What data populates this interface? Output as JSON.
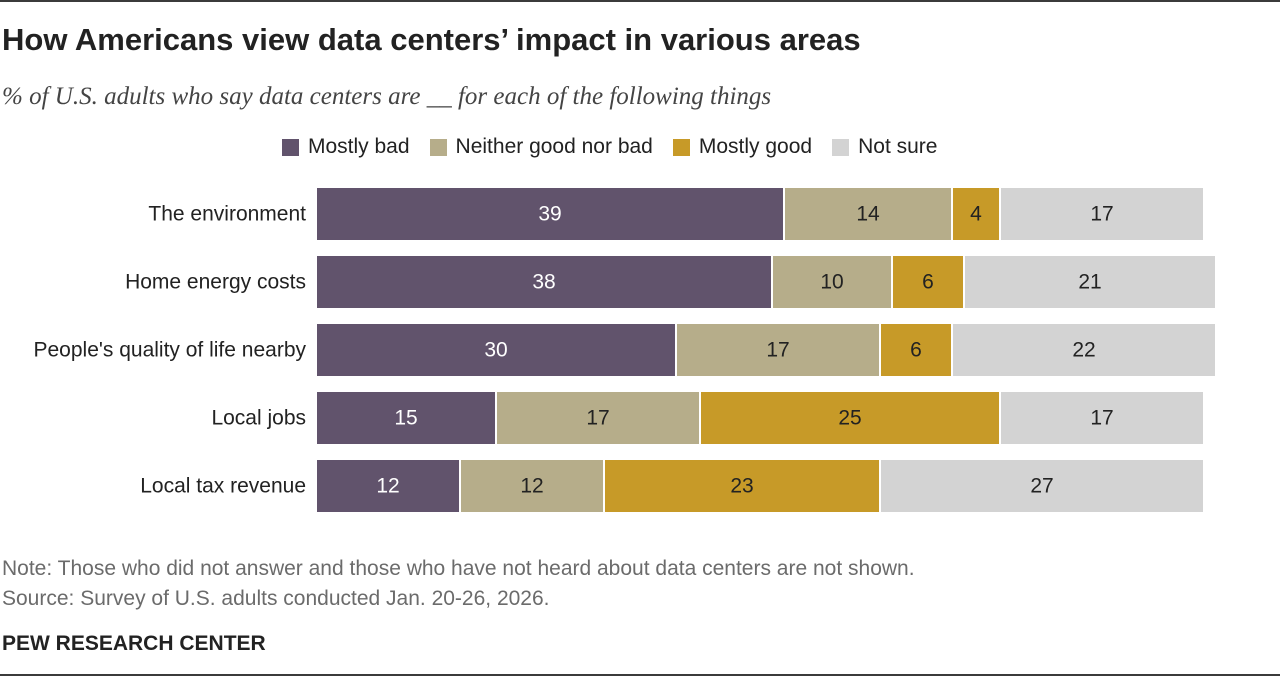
{
  "title": "How Americans view data centers’ impact in various areas",
  "subtitle": "% of U.S. adults who say data centers are __ for each of the following things",
  "legend": [
    {
      "label": "Mostly bad",
      "color": "#61536c"
    },
    {
      "label": "Neither good nor bad",
      "color": "#b6ad8a"
    },
    {
      "label": "Mostly good",
      "color": "#c79a28"
    },
    {
      "label": "Not sure",
      "color": "#d3d3d3"
    }
  ],
  "chart_data": {
    "type": "bar",
    "orientation": "horizontal",
    "stacked": true,
    "categories": [
      "The environment",
      "Home energy costs",
      "People's quality of life nearby",
      "Local jobs",
      "Local tax revenue"
    ],
    "series": [
      {
        "name": "Mostly bad",
        "color": "#61536c",
        "label_color": "#ffffff",
        "values": [
          39,
          38,
          30,
          15,
          12
        ]
      },
      {
        "name": "Neither good nor bad",
        "color": "#b6ad8a",
        "label_color": "#222222",
        "values": [
          14,
          10,
          17,
          17,
          12
        ]
      },
      {
        "name": "Mostly good",
        "color": "#c79a28",
        "label_color": "#222222",
        "values": [
          4,
          6,
          6,
          25,
          23
        ]
      },
      {
        "name": "Not sure",
        "color": "#d3d3d3",
        "label_color": "#222222",
        "values": [
          17,
          21,
          22,
          17,
          27
        ]
      }
    ],
    "title": "How Americans view data centers’ impact in various areas",
    "xlabel": "",
    "ylabel": "",
    "xlim": [
      0,
      100
    ],
    "grid": false,
    "legend_position": "top"
  },
  "notes": {
    "note": "Note: Those who did not answer and those who have not heard about data centers are not shown.",
    "source": "Source: Survey of U.S. adults conducted Jan. 20-26, 2026."
  },
  "brand": "PEW RESEARCH CENTER"
}
